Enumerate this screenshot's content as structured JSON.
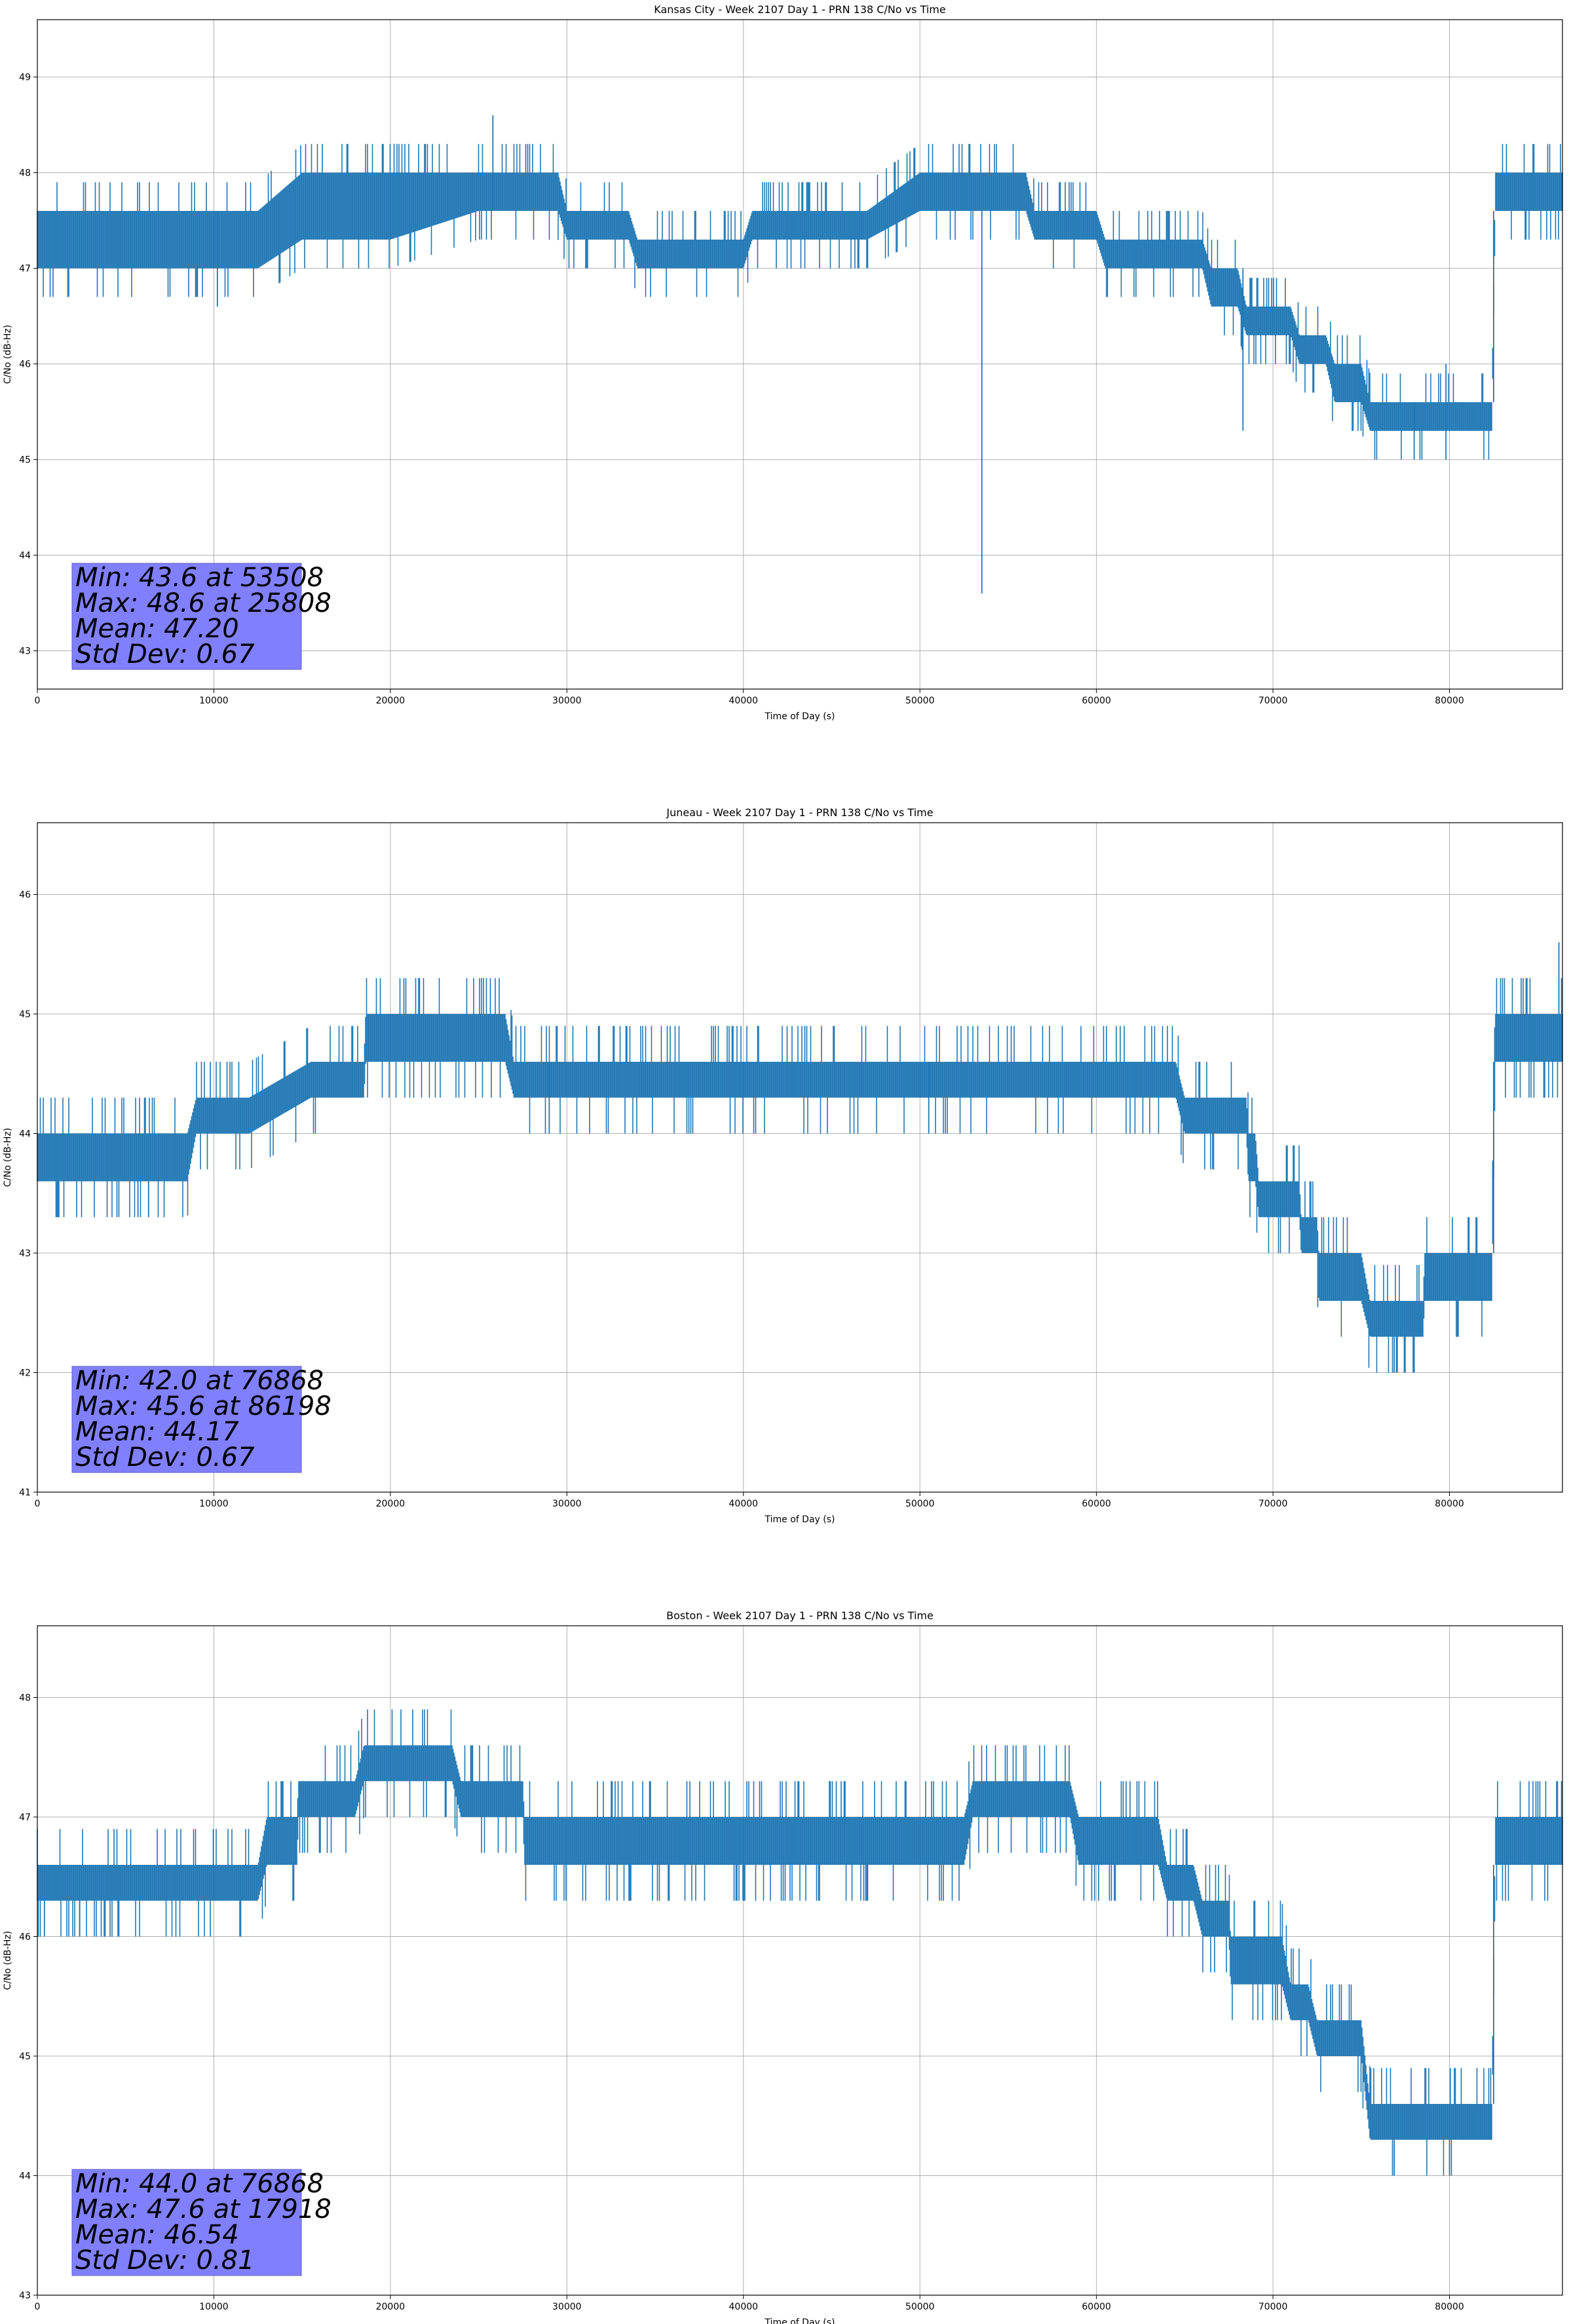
{
  "figure": {
    "series_color": "#1f77b4",
    "stats_box_color": "#8080ff"
  },
  "chart_data": [
    {
      "type": "line",
      "title": "Kansas City - Week 2107 Day 1 - PRN 138 C/No vs Time",
      "xlabel": "Time of Day (s)",
      "ylabel": "C/No (dB-Hz)",
      "xlim": [
        0,
        86400
      ],
      "ylim": [
        42.6,
        49.6
      ],
      "xticks": [
        0,
        10000,
        20000,
        30000,
        40000,
        50000,
        60000,
        70000,
        80000
      ],
      "yticks": [
        43,
        44,
        45,
        46,
        47,
        48,
        49
      ],
      "grid": true,
      "stats": [
        "Min: 43.6 at 53508",
        "Max: 48.6 at 25808",
        "Mean: 47.20",
        "Std Dev: 0.67"
      ],
      "envelope": [
        {
          "x": 0,
          "lo": 47.0,
          "hi": 47.6
        },
        {
          "x": 7000,
          "lo": 47.0,
          "hi": 47.6
        },
        {
          "x": 10000,
          "lo": 47.0,
          "hi": 47.6
        },
        {
          "x": 12500,
          "lo": 47.0,
          "hi": 47.6
        },
        {
          "x": 15000,
          "lo": 47.3,
          "hi": 48.0
        },
        {
          "x": 20000,
          "lo": 47.3,
          "hi": 48.0
        },
        {
          "x": 25000,
          "lo": 47.6,
          "hi": 48.0
        },
        {
          "x": 29500,
          "lo": 47.6,
          "hi": 48.0
        },
        {
          "x": 30000,
          "lo": 47.3,
          "hi": 47.6
        },
        {
          "x": 33500,
          "lo": 47.3,
          "hi": 47.6
        },
        {
          "x": 34000,
          "lo": 47.0,
          "hi": 47.3
        },
        {
          "x": 40000,
          "lo": 47.0,
          "hi": 47.3
        },
        {
          "x": 40500,
          "lo": 47.3,
          "hi": 47.6
        },
        {
          "x": 47000,
          "lo": 47.3,
          "hi": 47.6
        },
        {
          "x": 50000,
          "lo": 47.6,
          "hi": 48.0
        },
        {
          "x": 56000,
          "lo": 47.6,
          "hi": 48.0
        },
        {
          "x": 56500,
          "lo": 47.3,
          "hi": 47.6
        },
        {
          "x": 60000,
          "lo": 47.3,
          "hi": 47.6
        },
        {
          "x": 60500,
          "lo": 47.0,
          "hi": 47.3
        },
        {
          "x": 66000,
          "lo": 47.0,
          "hi": 47.3
        },
        {
          "x": 66500,
          "lo": 46.6,
          "hi": 47.0
        },
        {
          "x": 68000,
          "lo": 46.6,
          "hi": 47.0
        },
        {
          "x": 68500,
          "lo": 46.3,
          "hi": 46.6
        },
        {
          "x": 71000,
          "lo": 46.3,
          "hi": 46.6
        },
        {
          "x": 71500,
          "lo": 46.0,
          "hi": 46.3
        },
        {
          "x": 73000,
          "lo": 46.0,
          "hi": 46.3
        },
        {
          "x": 73500,
          "lo": 45.6,
          "hi": 46.0
        },
        {
          "x": 75000,
          "lo": 45.6,
          "hi": 46.0
        },
        {
          "x": 75500,
          "lo": 45.3,
          "hi": 45.6
        },
        {
          "x": 79000,
          "lo": 45.3,
          "hi": 45.6
        },
        {
          "x": 79500,
          "lo": 45.3,
          "hi": 45.6
        },
        {
          "x": 82400,
          "lo": 45.3,
          "hi": 45.6
        },
        {
          "x": 82600,
          "lo": 47.6,
          "hi": 48.0
        },
        {
          "x": 86400,
          "lo": 47.6,
          "hi": 48.0
        }
      ],
      "spikes": [
        {
          "x": 10200,
          "lo": 46.6,
          "hi": 47.6
        },
        {
          "x": 25808,
          "lo": 47.6,
          "hi": 48.6
        },
        {
          "x": 53508,
          "lo": 43.6,
          "hi": 47.6
        },
        {
          "x": 68300,
          "lo": 45.3,
          "hi": 47.0
        },
        {
          "x": 78000,
          "lo": 45.0,
          "hi": 45.6
        },
        {
          "x": 79800,
          "lo": 45.0,
          "hi": 46.0
        },
        {
          "x": 82500,
          "lo": 45.6,
          "hi": 47.6
        }
      ]
    },
    {
      "type": "line",
      "title": "Juneau - Week 2107 Day 1 - PRN 138 C/No vs Time",
      "xlabel": "Time of Day (s)",
      "ylabel": "C/No (dB-Hz)",
      "xlim": [
        0,
        86400
      ],
      "ylim": [
        41.0,
        46.6
      ],
      "xticks": [
        0,
        10000,
        20000,
        30000,
        40000,
        50000,
        60000,
        70000,
        80000
      ],
      "yticks": [
        41,
        42,
        43,
        44,
        45,
        46
      ],
      "grid": true,
      "stats": [
        "Min: 42.0 at 76868",
        "Max: 45.6 at 86198",
        "Mean: 44.17",
        "Std Dev: 0.67"
      ],
      "envelope": [
        {
          "x": 0,
          "lo": 43.6,
          "hi": 44.0
        },
        {
          "x": 6000,
          "lo": 43.6,
          "hi": 44.0
        },
        {
          "x": 8500,
          "lo": 43.6,
          "hi": 44.0
        },
        {
          "x": 9000,
          "lo": 44.0,
          "hi": 44.3
        },
        {
          "x": 11500,
          "lo": 44.0,
          "hi": 44.3
        },
        {
          "x": 12000,
          "lo": 44.0,
          "hi": 44.3
        },
        {
          "x": 15500,
          "lo": 44.3,
          "hi": 44.6
        },
        {
          "x": 18500,
          "lo": 44.3,
          "hi": 44.6
        },
        {
          "x": 18600,
          "lo": 44.6,
          "hi": 45.0
        },
        {
          "x": 26500,
          "lo": 44.6,
          "hi": 45.0
        },
        {
          "x": 27000,
          "lo": 44.3,
          "hi": 44.6
        },
        {
          "x": 64500,
          "lo": 44.3,
          "hi": 44.6
        },
        {
          "x": 65000,
          "lo": 44.0,
          "hi": 44.3
        },
        {
          "x": 68500,
          "lo": 44.0,
          "hi": 44.3
        },
        {
          "x": 68600,
          "lo": 43.6,
          "hi": 44.0
        },
        {
          "x": 69000,
          "lo": 43.6,
          "hi": 44.0
        },
        {
          "x": 69200,
          "lo": 43.3,
          "hi": 43.6
        },
        {
          "x": 71500,
          "lo": 43.3,
          "hi": 43.6
        },
        {
          "x": 71600,
          "lo": 43.0,
          "hi": 43.3
        },
        {
          "x": 72500,
          "lo": 43.0,
          "hi": 43.3
        },
        {
          "x": 72600,
          "lo": 42.6,
          "hi": 43.0
        },
        {
          "x": 75000,
          "lo": 42.6,
          "hi": 43.0
        },
        {
          "x": 75500,
          "lo": 42.3,
          "hi": 42.6
        },
        {
          "x": 78500,
          "lo": 42.3,
          "hi": 42.6
        },
        {
          "x": 78600,
          "lo": 42.6,
          "hi": 43.0
        },
        {
          "x": 82400,
          "lo": 42.6,
          "hi": 43.0
        },
        {
          "x": 82600,
          "lo": 44.6,
          "hi": 45.0
        },
        {
          "x": 86400,
          "lo": 44.6,
          "hi": 45.0
        }
      ],
      "spikes": [
        {
          "x": 5700,
          "lo": 43.3,
          "hi": 43.6
        },
        {
          "x": 6300,
          "lo": 43.3,
          "hi": 43.6
        },
        {
          "x": 29000,
          "lo": 44.0,
          "hi": 44.6
        },
        {
          "x": 50500,
          "lo": 44.0,
          "hi": 44.6
        },
        {
          "x": 76868,
          "lo": 42.0,
          "hi": 42.3
        },
        {
          "x": 78000,
          "lo": 42.0,
          "hi": 42.3
        },
        {
          "x": 82500,
          "lo": 43.0,
          "hi": 44.6
        },
        {
          "x": 86198,
          "lo": 45.0,
          "hi": 45.6
        }
      ]
    },
    {
      "type": "line",
      "title": "Boston - Week 2107 Day 1 - PRN 138 C/No vs Time",
      "xlabel": "Time of Day (s)",
      "ylabel": "C/No (dB-Hz)",
      "xlim": [
        0,
        86400
      ],
      "ylim": [
        43.0,
        48.6
      ],
      "xticks": [
        0,
        10000,
        20000,
        30000,
        40000,
        50000,
        60000,
        70000,
        80000
      ],
      "yticks": [
        43,
        44,
        45,
        46,
        47,
        48
      ],
      "grid": true,
      "stats": [
        "Min: 44.0 at 76868",
        "Max: 47.6 at 17918",
        "Mean: 46.54",
        "Std Dev: 0.81"
      ],
      "envelope": [
        {
          "x": 0,
          "lo": 46.3,
          "hi": 46.6
        },
        {
          "x": 5000,
          "lo": 46.3,
          "hi": 46.6
        },
        {
          "x": 12500,
          "lo": 46.3,
          "hi": 46.6
        },
        {
          "x": 13000,
          "lo": 46.6,
          "hi": 47.0
        },
        {
          "x": 14700,
          "lo": 46.6,
          "hi": 47.0
        },
        {
          "x": 14800,
          "lo": 47.0,
          "hi": 47.3
        },
        {
          "x": 18000,
          "lo": 47.0,
          "hi": 47.3
        },
        {
          "x": 18500,
          "lo": 47.3,
          "hi": 47.6
        },
        {
          "x": 23500,
          "lo": 47.3,
          "hi": 47.6
        },
        {
          "x": 24000,
          "lo": 47.0,
          "hi": 47.3
        },
        {
          "x": 27500,
          "lo": 47.0,
          "hi": 47.3
        },
        {
          "x": 27600,
          "lo": 46.6,
          "hi": 47.0
        },
        {
          "x": 46000,
          "lo": 46.6,
          "hi": 47.0
        },
        {
          "x": 46500,
          "lo": 46.6,
          "hi": 47.0
        },
        {
          "x": 52500,
          "lo": 46.6,
          "hi": 47.0
        },
        {
          "x": 53000,
          "lo": 47.0,
          "hi": 47.3
        },
        {
          "x": 58500,
          "lo": 47.0,
          "hi": 47.3
        },
        {
          "x": 59000,
          "lo": 46.6,
          "hi": 47.0
        },
        {
          "x": 63500,
          "lo": 46.6,
          "hi": 47.0
        },
        {
          "x": 64000,
          "lo": 46.3,
          "hi": 46.6
        },
        {
          "x": 65500,
          "lo": 46.3,
          "hi": 46.6
        },
        {
          "x": 66000,
          "lo": 46.0,
          "hi": 46.3
        },
        {
          "x": 67500,
          "lo": 46.0,
          "hi": 46.3
        },
        {
          "x": 67600,
          "lo": 45.6,
          "hi": 46.0
        },
        {
          "x": 70500,
          "lo": 45.6,
          "hi": 46.0
        },
        {
          "x": 71000,
          "lo": 45.3,
          "hi": 45.6
        },
        {
          "x": 72000,
          "lo": 45.3,
          "hi": 45.6
        },
        {
          "x": 72500,
          "lo": 45.0,
          "hi": 45.3
        },
        {
          "x": 75000,
          "lo": 45.0,
          "hi": 45.3
        },
        {
          "x": 75500,
          "lo": 44.3,
          "hi": 44.6
        },
        {
          "x": 79500,
          "lo": 44.3,
          "hi": 44.6
        },
        {
          "x": 80000,
          "lo": 44.3,
          "hi": 44.6
        },
        {
          "x": 82400,
          "lo": 44.3,
          "hi": 44.6
        },
        {
          "x": 82600,
          "lo": 46.6,
          "hi": 47.0
        },
        {
          "x": 86400,
          "lo": 46.6,
          "hi": 47.0
        }
      ],
      "spikes": [
        {
          "x": 400,
          "lo": 46.0,
          "hi": 46.3
        },
        {
          "x": 2400,
          "lo": 46.0,
          "hi": 46.3
        },
        {
          "x": 47000,
          "lo": 46.3,
          "hi": 46.6
        },
        {
          "x": 76868,
          "lo": 44.0,
          "hi": 44.3
        },
        {
          "x": 80000,
          "lo": 44.0,
          "hi": 44.3
        },
        {
          "x": 82500,
          "lo": 44.6,
          "hi": 46.6
        }
      ]
    }
  ]
}
